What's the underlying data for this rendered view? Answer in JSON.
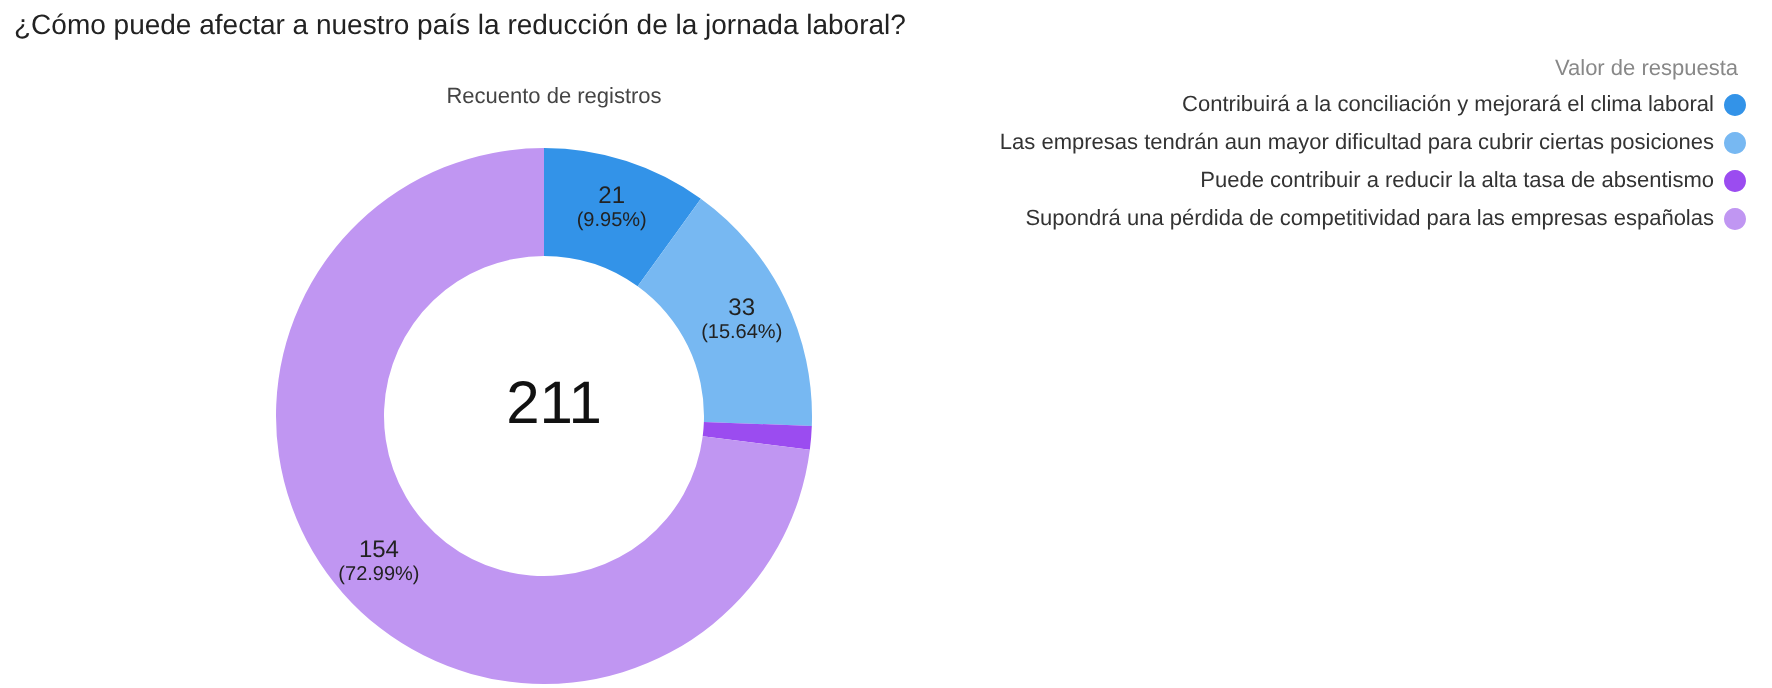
{
  "chart_data": {
    "type": "donut",
    "title": "¿Cómo puede afectar a nuestro país la reducción de la jornada laboral?",
    "subtitle": "Recuento de registros",
    "legend_title": "Valor de respuesta",
    "categories": [
      "Contribuirá a la conciliación y mejorará el clima laboral",
      "Las empresas tendrán aun mayor dificultad para cubrir ciertas posiciones",
      "Puede contribuir a reducir la alta tasa de absentismo",
      "Supondrá una pérdida de competitividad para las empresas españolas"
    ],
    "values": [
      21,
      33,
      3,
      154
    ],
    "colors": [
      "#3393e8",
      "#77b8f2",
      "#9b4cf0",
      "#c096f2"
    ],
    "value_labels": [
      "21\n(9.95%)",
      "33\n(15.64%)",
      null,
      "154\n(72.99%)"
    ],
    "annotations": [
      "211"
    ],
    "legend": "top right"
  }
}
